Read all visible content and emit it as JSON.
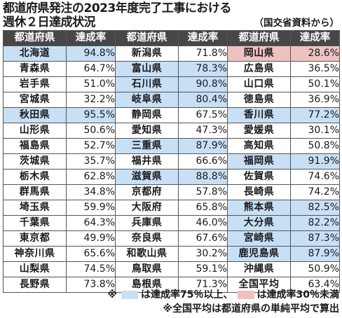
{
  "title": {
    "line1": "都道府県発注の2023年度完了工事における",
    "line2": "週休２日達成状況",
    "source": "（国交省資料から）"
  },
  "headers": [
    "都道府県",
    "達成率",
    "都道府県",
    "達成率",
    "都道府県",
    "達成率"
  ],
  "colors": {
    "high": "#c7e0f6",
    "low": "#efc2c2",
    "header": "#474747"
  },
  "rows": [
    [
      {
        "pref": "北海道",
        "rate": "94.8%",
        "hl": "high"
      },
      {
        "pref": "新潟県",
        "rate": "71.8%",
        "hl": ""
      },
      {
        "pref": "岡山県",
        "rate": "28.6%",
        "hl": "low"
      }
    ],
    [
      {
        "pref": "青森県",
        "rate": "64.7%",
        "hl": ""
      },
      {
        "pref": "富山県",
        "rate": "78.3%",
        "hl": "high"
      },
      {
        "pref": "広島県",
        "rate": "36.5%",
        "hl": ""
      }
    ],
    [
      {
        "pref": "岩手県",
        "rate": "51.0%",
        "hl": ""
      },
      {
        "pref": "石川県",
        "rate": "90.8%",
        "hl": "high"
      },
      {
        "pref": "山口県",
        "rate": "50.1%",
        "hl": ""
      }
    ],
    [
      {
        "pref": "宮城県",
        "rate": "32.2%",
        "hl": ""
      },
      {
        "pref": "岐阜県",
        "rate": "80.4%",
        "hl": "high"
      },
      {
        "pref": "徳島県",
        "rate": "36.9%",
        "hl": ""
      }
    ],
    [
      {
        "pref": "秋田県",
        "rate": "95.5%",
        "hl": "high"
      },
      {
        "pref": "静岡県",
        "rate": "67.5%",
        "hl": ""
      },
      {
        "pref": "香川県",
        "rate": "77.2%",
        "hl": "high"
      }
    ],
    [
      {
        "pref": "山形県",
        "rate": "50.6%",
        "hl": ""
      },
      {
        "pref": "愛知県",
        "rate": "47.3%",
        "hl": ""
      },
      {
        "pref": "愛媛県",
        "rate": "30.1%",
        "hl": ""
      }
    ],
    [
      {
        "pref": "福島県",
        "rate": "52.7%",
        "hl": ""
      },
      {
        "pref": "三重県",
        "rate": "87.9%",
        "hl": "high"
      },
      {
        "pref": "高知県",
        "rate": "50.8%",
        "hl": ""
      }
    ],
    [
      {
        "pref": "茨城県",
        "rate": "35.7%",
        "hl": ""
      },
      {
        "pref": "福井県",
        "rate": "66.6%",
        "hl": ""
      },
      {
        "pref": "福岡県",
        "rate": "91.9%",
        "hl": "high"
      }
    ],
    [
      {
        "pref": "栃木県",
        "rate": "62.8%",
        "hl": ""
      },
      {
        "pref": "滋賀県",
        "rate": "88.8%",
        "hl": "high"
      },
      {
        "pref": "佐賀県",
        "rate": "74.6%",
        "hl": ""
      }
    ],
    [
      {
        "pref": "群馬県",
        "rate": "34.8%",
        "hl": ""
      },
      {
        "pref": "京都府",
        "rate": "57.8%",
        "hl": ""
      },
      {
        "pref": "長崎県",
        "rate": "74.2%",
        "hl": ""
      }
    ],
    [
      {
        "pref": "埼玉県",
        "rate": "59.9%",
        "hl": ""
      },
      {
        "pref": "大阪府",
        "rate": "65.8%",
        "hl": ""
      },
      {
        "pref": "熊本県",
        "rate": "82.5%",
        "hl": "high"
      }
    ],
    [
      {
        "pref": "千葉県",
        "rate": "64.3%",
        "hl": ""
      },
      {
        "pref": "兵庫県",
        "rate": "46.0%",
        "hl": ""
      },
      {
        "pref": "大分県",
        "rate": "82.2%",
        "hl": "high"
      }
    ],
    [
      {
        "pref": "東京都",
        "rate": "49.9%",
        "hl": ""
      },
      {
        "pref": "奈良県",
        "rate": "67.6%",
        "hl": ""
      },
      {
        "pref": "宮崎県",
        "rate": "87.3%",
        "hl": "high"
      }
    ],
    [
      {
        "pref": "神奈川県",
        "rate": "65.6%",
        "hl": ""
      },
      {
        "pref": "和歌山県",
        "rate": "30.2%",
        "hl": ""
      },
      {
        "pref": "鹿児島県",
        "rate": "87.9%",
        "hl": "high"
      }
    ],
    [
      {
        "pref": "山梨県",
        "rate": "74.5%",
        "hl": ""
      },
      {
        "pref": "鳥取県",
        "rate": "59.1%",
        "hl": ""
      },
      {
        "pref": "沖縄県",
        "rate": "50.9%",
        "hl": ""
      }
    ],
    [
      {
        "pref": "長野県",
        "rate": "73.8%",
        "hl": ""
      },
      {
        "pref": "島根県",
        "rate": "71.3%",
        "hl": ""
      },
      {
        "pref": "全国平均",
        "rate": "63.4%",
        "hl": ""
      }
    ]
  ],
  "notes": {
    "mark": "※",
    "high_text": "は達成率75％以上、",
    "low_text": "は達成率30％未満",
    "line2": "※全国平均は都道府県の単純平均で算出"
  }
}
